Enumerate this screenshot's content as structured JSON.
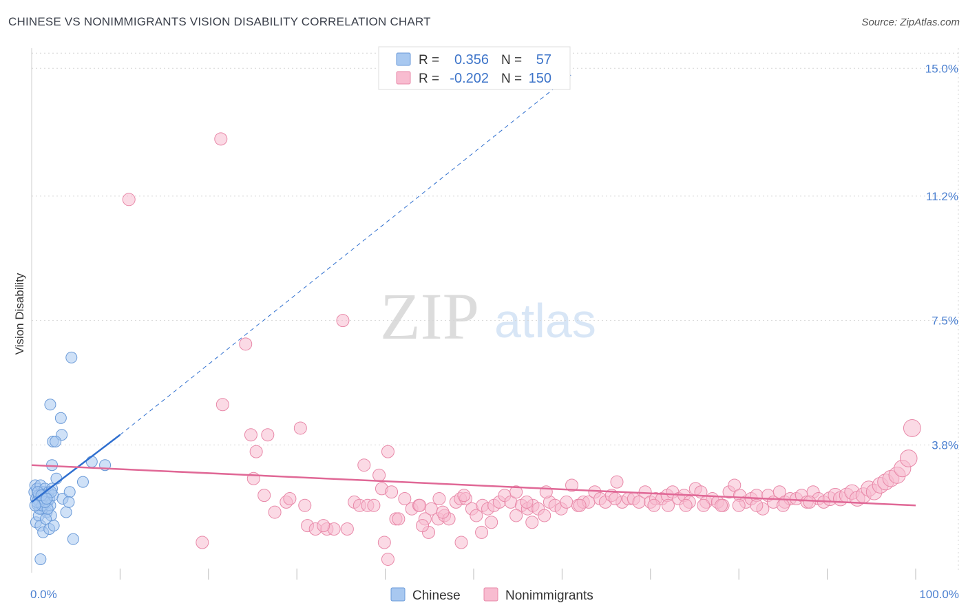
{
  "header": {
    "title": "CHINESE VS NONIMMIGRANTS VISION DISABILITY CORRELATION CHART",
    "source": "Source: ZipAtlas.com"
  },
  "watermark": {
    "zip": "ZIP",
    "atlas": "atlas"
  },
  "legend_top": {
    "r_label": "R =",
    "n_label": "N =",
    "rows": [
      {
        "r": "0.356",
        "n": "57",
        "color": "#a8c8f0",
        "stroke": "#6a9ad8"
      },
      {
        "r": "-0.202",
        "n": "150",
        "color": "#f8bcd0",
        "stroke": "#e888a8"
      }
    ]
  },
  "legend_bottom": [
    {
      "label": "Chinese",
      "color": "#a8c8f0",
      "stroke": "#6a9ad8"
    },
    {
      "label": "Nonimmigrants",
      "color": "#f8bcd0",
      "stroke": "#e888a8"
    }
  ],
  "chart_data": {
    "type": "scatter",
    "title": "CHINESE VS NONIMMIGRANTS VISION DISABILITY CORRELATION CHART",
    "xlabel": "",
    "ylabel": "Vision Disability",
    "xlim": [
      0,
      100
    ],
    "ylim": [
      0,
      15.6
    ],
    "x_tick_labels": [
      "0.0%",
      "100.0%"
    ],
    "y_ticks": [
      {
        "value": 3.8,
        "label": "3.8%"
      },
      {
        "value": 7.5,
        "label": "7.5%"
      },
      {
        "value": 11.2,
        "label": "11.2%"
      },
      {
        "value": 15.0,
        "label": "15.0%"
      }
    ],
    "grid": true,
    "series": [
      {
        "name": "Chinese",
        "color": "#a8c8f0",
        "stroke": "#6a9ad8",
        "trend_color": "#2f6fcf",
        "trend": {
          "x0": 0,
          "y0": 2.1,
          "x1": 10,
          "y1": 4.1,
          "dashed_to_x": 61,
          "dashed_to_y": 14.8
        },
        "points": [
          [
            0.3,
            2.4
          ],
          [
            0.4,
            2.6
          ],
          [
            0.5,
            2.2
          ],
          [
            0.6,
            2.5
          ],
          [
            0.7,
            2.0
          ],
          [
            0.8,
            2.3
          ],
          [
            0.9,
            2.1
          ],
          [
            1.0,
            2.6
          ],
          [
            1.1,
            1.9
          ],
          [
            1.2,
            2.2
          ],
          [
            1.3,
            2.4
          ],
          [
            1.4,
            2.0
          ],
          [
            1.5,
            2.5
          ],
          [
            1.6,
            2.3
          ],
          [
            1.7,
            1.8
          ],
          [
            1.8,
            2.1
          ],
          [
            1.9,
            2.4
          ],
          [
            2.0,
            2.2
          ],
          [
            2.1,
            2.0
          ],
          [
            2.2,
            1.7
          ],
          [
            2.3,
            2.5
          ],
          [
            2.4,
            2.3
          ],
          [
            0.5,
            1.5
          ],
          [
            0.8,
            1.7
          ],
          [
            1.0,
            1.4
          ],
          [
            1.3,
            1.2
          ],
          [
            1.6,
            1.6
          ],
          [
            0.9,
            1.9
          ],
          [
            1.2,
            2.0
          ],
          [
            1.4,
            2.3
          ],
          [
            0.6,
            2.1
          ],
          [
            0.7,
            2.4
          ],
          [
            1.8,
            1.9
          ],
          [
            2.0,
            1.3
          ],
          [
            2.2,
            2.4
          ],
          [
            2.5,
            1.4
          ],
          [
            1.5,
            2.1
          ],
          [
            0.4,
            2.0
          ],
          [
            1.1,
            2.3
          ],
          [
            1.7,
            2.2
          ],
          [
            2.3,
            3.2
          ],
          [
            2.8,
            2.8
          ],
          [
            2.1,
            5.0
          ],
          [
            3.3,
            4.6
          ],
          [
            3.4,
            4.1
          ],
          [
            2.4,
            3.9
          ],
          [
            2.7,
            3.9
          ],
          [
            4.5,
            6.4
          ],
          [
            6.8,
            3.3
          ],
          [
            8.3,
            3.2
          ],
          [
            3.5,
            2.2
          ],
          [
            3.9,
            1.8
          ],
          [
            4.3,
            2.4
          ],
          [
            4.2,
            2.1
          ],
          [
            4.7,
            1.0
          ],
          [
            5.8,
            2.7
          ],
          [
            1.0,
            0.4
          ]
        ]
      },
      {
        "name": "Nonimmigrants",
        "color": "#f8bcd0",
        "stroke": "#e888a8",
        "trend_color": "#e06896",
        "trend": {
          "x0": 0,
          "y0": 3.2,
          "x1": 100,
          "y1": 2.0
        },
        "points": [
          [
            21.4,
            12.9
          ],
          [
            11.0,
            11.1
          ],
          [
            35.2,
            7.5
          ],
          [
            24.2,
            6.8
          ],
          [
            21.6,
            5.0
          ],
          [
            30.4,
            4.3
          ],
          [
            26.7,
            4.1
          ],
          [
            24.8,
            4.1
          ],
          [
            25.4,
            3.6
          ],
          [
            40.3,
            3.6
          ],
          [
            37.6,
            3.2
          ],
          [
            39.3,
            2.9
          ],
          [
            42.2,
            2.2
          ],
          [
            25.1,
            2.8
          ],
          [
            26.3,
            2.3
          ],
          [
            27.5,
            1.8
          ],
          [
            28.8,
            2.1
          ],
          [
            29.2,
            2.2
          ],
          [
            30.9,
            2.0
          ],
          [
            31.2,
            1.4
          ],
          [
            32.1,
            1.3
          ],
          [
            33.4,
            1.3
          ],
          [
            34.2,
            1.3
          ],
          [
            35.7,
            1.3
          ],
          [
            36.5,
            2.1
          ],
          [
            37.1,
            2.0
          ],
          [
            38.0,
            2.0
          ],
          [
            38.7,
            2.0
          ],
          [
            39.6,
            2.5
          ],
          [
            41.2,
            1.6
          ],
          [
            41.5,
            1.6
          ],
          [
            43.0,
            1.9
          ],
          [
            43.8,
            2.0
          ],
          [
            44.5,
            1.6
          ],
          [
            44.9,
            1.2
          ],
          [
            45.2,
            1.9
          ],
          [
            46.0,
            1.6
          ],
          [
            46.7,
            1.7
          ],
          [
            47.2,
            1.6
          ],
          [
            48.0,
            2.1
          ],
          [
            48.5,
            2.2
          ],
          [
            49.1,
            2.2
          ],
          [
            49.8,
            1.9
          ],
          [
            50.3,
            1.7
          ],
          [
            51.0,
            2.0
          ],
          [
            51.6,
            1.9
          ],
          [
            52.3,
            2.0
          ],
          [
            52.9,
            2.1
          ],
          [
            53.5,
            2.3
          ],
          [
            54.2,
            2.1
          ],
          [
            54.8,
            2.4
          ],
          [
            55.4,
            2.0
          ],
          [
            56.1,
            1.9
          ],
          [
            56.7,
            2.0
          ],
          [
            57.3,
            1.9
          ],
          [
            58.0,
            1.7
          ],
          [
            58.6,
            2.1
          ],
          [
            59.2,
            2.0
          ],
          [
            59.9,
            1.9
          ],
          [
            60.5,
            2.1
          ],
          [
            61.1,
            2.6
          ],
          [
            61.8,
            2.0
          ],
          [
            62.4,
            2.1
          ],
          [
            63.0,
            2.1
          ],
          [
            63.7,
            2.4
          ],
          [
            64.3,
            2.2
          ],
          [
            64.9,
            2.1
          ],
          [
            65.6,
            2.3
          ],
          [
            66.2,
            2.7
          ],
          [
            66.8,
            2.1
          ],
          [
            67.5,
            2.2
          ],
          [
            68.1,
            2.2
          ],
          [
            68.7,
            2.1
          ],
          [
            69.4,
            2.4
          ],
          [
            70.0,
            2.1
          ],
          [
            70.6,
            2.2
          ],
          [
            71.3,
            2.2
          ],
          [
            71.9,
            2.3
          ],
          [
            72.5,
            2.4
          ],
          [
            73.2,
            2.2
          ],
          [
            73.8,
            2.3
          ],
          [
            74.4,
            2.1
          ],
          [
            75.1,
            2.5
          ],
          [
            75.7,
            2.4
          ],
          [
            76.3,
            2.1
          ],
          [
            77.0,
            2.2
          ],
          [
            77.6,
            2.1
          ],
          [
            78.2,
            2.0
          ],
          [
            78.9,
            2.4
          ],
          [
            79.5,
            2.6
          ],
          [
            80.1,
            2.3
          ],
          [
            80.8,
            2.1
          ],
          [
            81.4,
            2.2
          ],
          [
            82.0,
            2.3
          ],
          [
            82.7,
            1.9
          ],
          [
            83.3,
            2.3
          ],
          [
            83.9,
            2.1
          ],
          [
            84.6,
            2.4
          ],
          [
            85.2,
            2.1
          ],
          [
            85.8,
            2.2
          ],
          [
            86.5,
            2.2
          ],
          [
            87.1,
            2.3
          ],
          [
            87.7,
            2.1
          ],
          [
            88.4,
            2.4
          ],
          [
            89.0,
            2.2
          ],
          [
            89.6,
            2.1
          ],
          [
            90.3,
            2.2
          ],
          [
            90.9,
            2.3
          ],
          [
            91.5,
            2.2
          ],
          [
            92.2,
            2.3
          ],
          [
            92.8,
            2.4
          ],
          [
            93.4,
            2.2
          ],
          [
            94.1,
            2.3
          ],
          [
            94.7,
            2.5
          ],
          [
            95.3,
            2.4
          ],
          [
            96.0,
            2.6
          ],
          [
            96.6,
            2.7
          ],
          [
            97.2,
            2.8
          ],
          [
            97.9,
            2.9
          ],
          [
            98.5,
            3.1
          ],
          [
            99.2,
            3.4
          ],
          [
            99.6,
            4.3
          ],
          [
            56.0,
            2.1
          ],
          [
            58.2,
            2.4
          ],
          [
            46.1,
            2.2
          ],
          [
            48.9,
            2.3
          ],
          [
            40.7,
            2.4
          ],
          [
            43.9,
            2.0
          ],
          [
            33.0,
            1.4
          ],
          [
            19.3,
            0.9
          ],
          [
            39.9,
            0.9
          ],
          [
            48.6,
            0.9
          ],
          [
            50.9,
            1.2
          ],
          [
            56.6,
            1.5
          ],
          [
            40.3,
            0.4
          ],
          [
            54.8,
            1.7
          ],
          [
            52.0,
            1.5
          ],
          [
            46.5,
            1.8
          ],
          [
            44.2,
            1.4
          ],
          [
            62.0,
            2.0
          ],
          [
            66.0,
            2.2
          ],
          [
            70.4,
            2.0
          ],
          [
            72.0,
            2.0
          ],
          [
            74.0,
            2.0
          ],
          [
            76.0,
            2.0
          ],
          [
            78.0,
            2.0
          ],
          [
            80.0,
            2.0
          ],
          [
            82.0,
            2.0
          ],
          [
            85.0,
            2.0
          ],
          [
            88.0,
            2.1
          ]
        ]
      }
    ]
  }
}
